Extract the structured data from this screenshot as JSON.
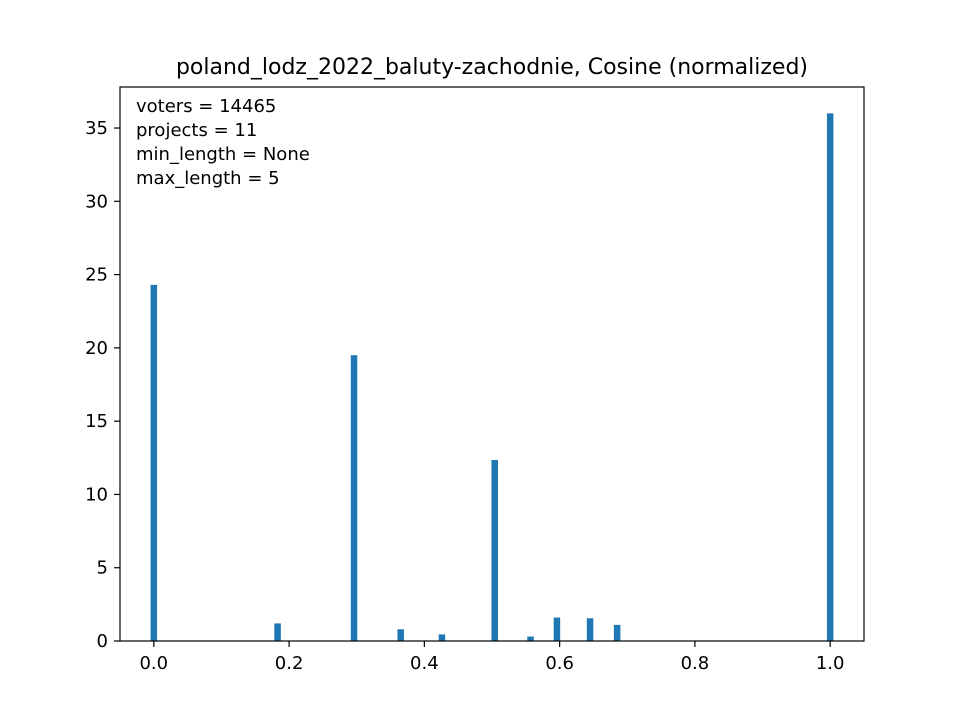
{
  "chart_data": {
    "type": "bar",
    "title": "poland_lodz_2022_baluty-zachodnie, Cosine (normalized)",
    "xlabel": "",
    "ylabel": "",
    "xlim": [
      -0.05,
      1.05
    ],
    "ylim": [
      0,
      37.8
    ],
    "xticks": [
      0.0,
      0.2,
      0.4,
      0.6,
      0.8,
      1.0
    ],
    "xtick_labels": [
      "0.0",
      "0.2",
      "0.4",
      "0.6",
      "0.8",
      "1.0"
    ],
    "yticks": [
      0,
      5,
      10,
      15,
      20,
      25,
      30,
      35
    ],
    "ytick_labels": [
      "0",
      "5",
      "10",
      "15",
      "20",
      "25",
      "30",
      "35"
    ],
    "grid": false,
    "bar_color": "#1f77b4",
    "bars": [
      {
        "x": 0.0,
        "value": 24.3
      },
      {
        "x": 0.183,
        "value": 1.2
      },
      {
        "x": 0.296,
        "value": 19.5
      },
      {
        "x": 0.365,
        "value": 0.8
      },
      {
        "x": 0.426,
        "value": 0.45
      },
      {
        "x": 0.504,
        "value": 12.35
      },
      {
        "x": 0.557,
        "value": 0.3
      },
      {
        "x": 0.596,
        "value": 1.6
      },
      {
        "x": 0.645,
        "value": 1.55
      },
      {
        "x": 0.685,
        "value": 1.1
      },
      {
        "x": 1.0,
        "value": 36.0
      }
    ],
    "annotations": [
      "voters = 14465",
      "projects = 11",
      "min_length = None",
      "max_length = 5"
    ],
    "annotation_placement": "top-left"
  }
}
